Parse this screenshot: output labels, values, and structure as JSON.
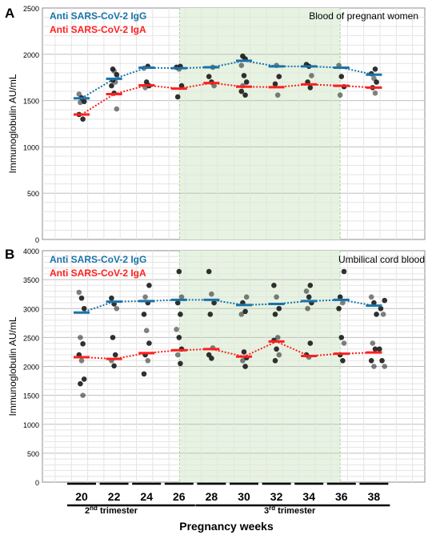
{
  "panels_meta": {
    "ylabel": "Immunoglobulin AU/mL",
    "xlabel": "Pregnancy weeks",
    "second_trimester_label": "2nd trimester",
    "third_trimester_label": "3rd trimester",
    "shaded_weeks": [
      28,
      34
    ],
    "colors": {
      "igg": "#1a73a8",
      "iga": "#ff1f1f",
      "shade": "#e6f3e0",
      "dots": "#1a1a1a"
    }
  },
  "chart_data": [
    {
      "type": "scatter",
      "panel_letter": "A",
      "title": "Blood of pregnant women",
      "ylabel": "Immunoglobulin AU/mL",
      "xlabel": "Pregnancy weeks",
      "x": [
        20,
        22,
        24,
        26,
        28,
        30,
        32,
        34,
        36,
        38
      ],
      "ylim": [
        0,
        2500
      ],
      "yticks": [
        0,
        500,
        1000,
        1500,
        2000,
        2500
      ],
      "grid": true,
      "legend_position": "top-left",
      "series": [
        {
          "name": "Anti SARS-CoV-2 IgG",
          "means": [
            1525,
            1735,
            1855,
            1850,
            1860,
            1930,
            1870,
            1870,
            1855,
            1780
          ]
        },
        {
          "name": "Anti SARS-CoV-2 IgA",
          "means": [
            1350,
            1570,
            1665,
            1630,
            1690,
            1650,
            1645,
            1675,
            1660,
            1640
          ]
        }
      ],
      "points": [
        [
          20,
          1570
        ],
        [
          20,
          1530
        ],
        [
          20,
          1490
        ],
        [
          20,
          1480
        ],
        [
          20,
          1300
        ],
        [
          20,
          1350
        ],
        [
          22,
          1820
        ],
        [
          22,
          1780
        ],
        [
          22,
          1720
        ],
        [
          22,
          1700
        ],
        [
          22,
          1660
        ],
        [
          22,
          1580
        ],
        [
          22,
          1410
        ],
        [
          22,
          1840
        ],
        [
          24,
          1870
        ],
        [
          24,
          1850
        ],
        [
          24,
          1700
        ],
        [
          24,
          1660
        ],
        [
          24,
          1640
        ],
        [
          26,
          1870
        ],
        [
          26,
          1860
        ],
        [
          26,
          1840
        ],
        [
          26,
          1660
        ],
        [
          26,
          1540
        ],
        [
          28,
          1860
        ],
        [
          28,
          1760
        ],
        [
          28,
          1700
        ],
        [
          28,
          1660
        ],
        [
          30,
          1980
        ],
        [
          30,
          1950
        ],
        [
          30,
          1880
        ],
        [
          30,
          1770
        ],
        [
          30,
          1700
        ],
        [
          30,
          1660
        ],
        [
          30,
          1560
        ],
        [
          30,
          1600
        ],
        [
          32,
          1880
        ],
        [
          32,
          1760
        ],
        [
          32,
          1680
        ],
        [
          32,
          1560
        ],
        [
          34,
          1890
        ],
        [
          34,
          1870
        ],
        [
          34,
          1770
        ],
        [
          34,
          1700
        ],
        [
          34,
          1640
        ],
        [
          36,
          1880
        ],
        [
          36,
          1760
        ],
        [
          36,
          1650
        ],
        [
          36,
          1560
        ],
        [
          38,
          1840
        ],
        [
          38,
          1790
        ],
        [
          38,
          1740
        ],
        [
          38,
          1700
        ],
        [
          38,
          1640
        ],
        [
          38,
          1580
        ]
      ]
    },
    {
      "type": "scatter",
      "panel_letter": "B",
      "title": "Umbilical cord blood",
      "ylabel": "Immunoglobulin AU/mL",
      "xlabel": "Pregnancy weeks",
      "x": [
        20,
        22,
        24,
        26,
        28,
        30,
        32,
        34,
        36,
        38
      ],
      "ylim": [
        0,
        4000
      ],
      "yticks": [
        0,
        500,
        1000,
        1500,
        2000,
        2500,
        3000,
        3500,
        4000
      ],
      "grid": true,
      "legend_position": "top-left",
      "series": [
        {
          "name": "Anti SARS-CoV-2 IgG",
          "means": [
            2930,
            3120,
            3130,
            3150,
            3150,
            3060,
            3080,
            3130,
            3150,
            3050
          ]
        },
        {
          "name": "Anti SARS-CoV-2 IgA",
          "means": [
            2160,
            2130,
            2230,
            2280,
            2300,
            2170,
            2430,
            2180,
            2220,
            2240
          ]
        }
      ],
      "points": [
        [
          20,
          3280
        ],
        [
          20,
          3180
        ],
        [
          20,
          3000
        ],
        [
          20,
          2500
        ],
        [
          20,
          2390
        ],
        [
          20,
          2200
        ],
        [
          20,
          2100
        ],
        [
          20,
          1780
        ],
        [
          20,
          1700
        ],
        [
          20,
          1500
        ],
        [
          22,
          3180
        ],
        [
          22,
          3080
        ],
        [
          22,
          3000
        ],
        [
          22,
          2500
        ],
        [
          22,
          2200
        ],
        [
          22,
          2100
        ],
        [
          22,
          2010
        ],
        [
          24,
          3400
        ],
        [
          24,
          3200
        ],
        [
          24,
          3100
        ],
        [
          24,
          2900
        ],
        [
          24,
          2620
        ],
        [
          24,
          2400
        ],
        [
          24,
          2200
        ],
        [
          24,
          2100
        ],
        [
          24,
          1870
        ],
        [
          26,
          3640
        ],
        [
          26,
          3200
        ],
        [
          26,
          3100
        ],
        [
          26,
          2900
        ],
        [
          26,
          2640
        ],
        [
          26,
          2500
        ],
        [
          26,
          2300
        ],
        [
          26,
          2200
        ],
        [
          26,
          2050
        ],
        [
          28,
          3640
        ],
        [
          28,
          3250
        ],
        [
          28,
          3100
        ],
        [
          28,
          2900
        ],
        [
          28,
          2320
        ],
        [
          28,
          2200
        ],
        [
          28,
          2140
        ],
        [
          30,
          3200
        ],
        [
          30,
          3100
        ],
        [
          30,
          2950
        ],
        [
          30,
          2900
        ],
        [
          30,
          2250
        ],
        [
          30,
          2150
        ],
        [
          30,
          2100
        ],
        [
          30,
          2000
        ],
        [
          32,
          3400
        ],
        [
          32,
          3200
        ],
        [
          32,
          3000
        ],
        [
          32,
          2900
        ],
        [
          32,
          2500
        ],
        [
          32,
          2450
        ],
        [
          32,
          2300
        ],
        [
          32,
          2200
        ],
        [
          32,
          2100
        ],
        [
          34,
          3400
        ],
        [
          34,
          3300
        ],
        [
          34,
          3200
        ],
        [
          34,
          3100
        ],
        [
          34,
          3000
        ],
        [
          34,
          2400
        ],
        [
          34,
          2200
        ],
        [
          34,
          2160
        ],
        [
          36,
          3640
        ],
        [
          36,
          3200
        ],
        [
          36,
          3100
        ],
        [
          36,
          3000
        ],
        [
          36,
          2500
        ],
        [
          36,
          2400
        ],
        [
          36,
          2200
        ],
        [
          36,
          2100
        ],
        [
          38,
          3200
        ],
        [
          38,
          3100
        ],
        [
          38,
          2900
        ],
        [
          38,
          2400
        ],
        [
          38,
          2300
        ],
        [
          38,
          2100
        ],
        [
          38,
          2000
        ],
        [
          38.5,
          3140
        ],
        [
          38.5,
          3000
        ],
        [
          38.5,
          2900
        ],
        [
          38.5,
          2300
        ],
        [
          38.5,
          2100
        ],
        [
          38.5,
          2000
        ]
      ]
    }
  ]
}
